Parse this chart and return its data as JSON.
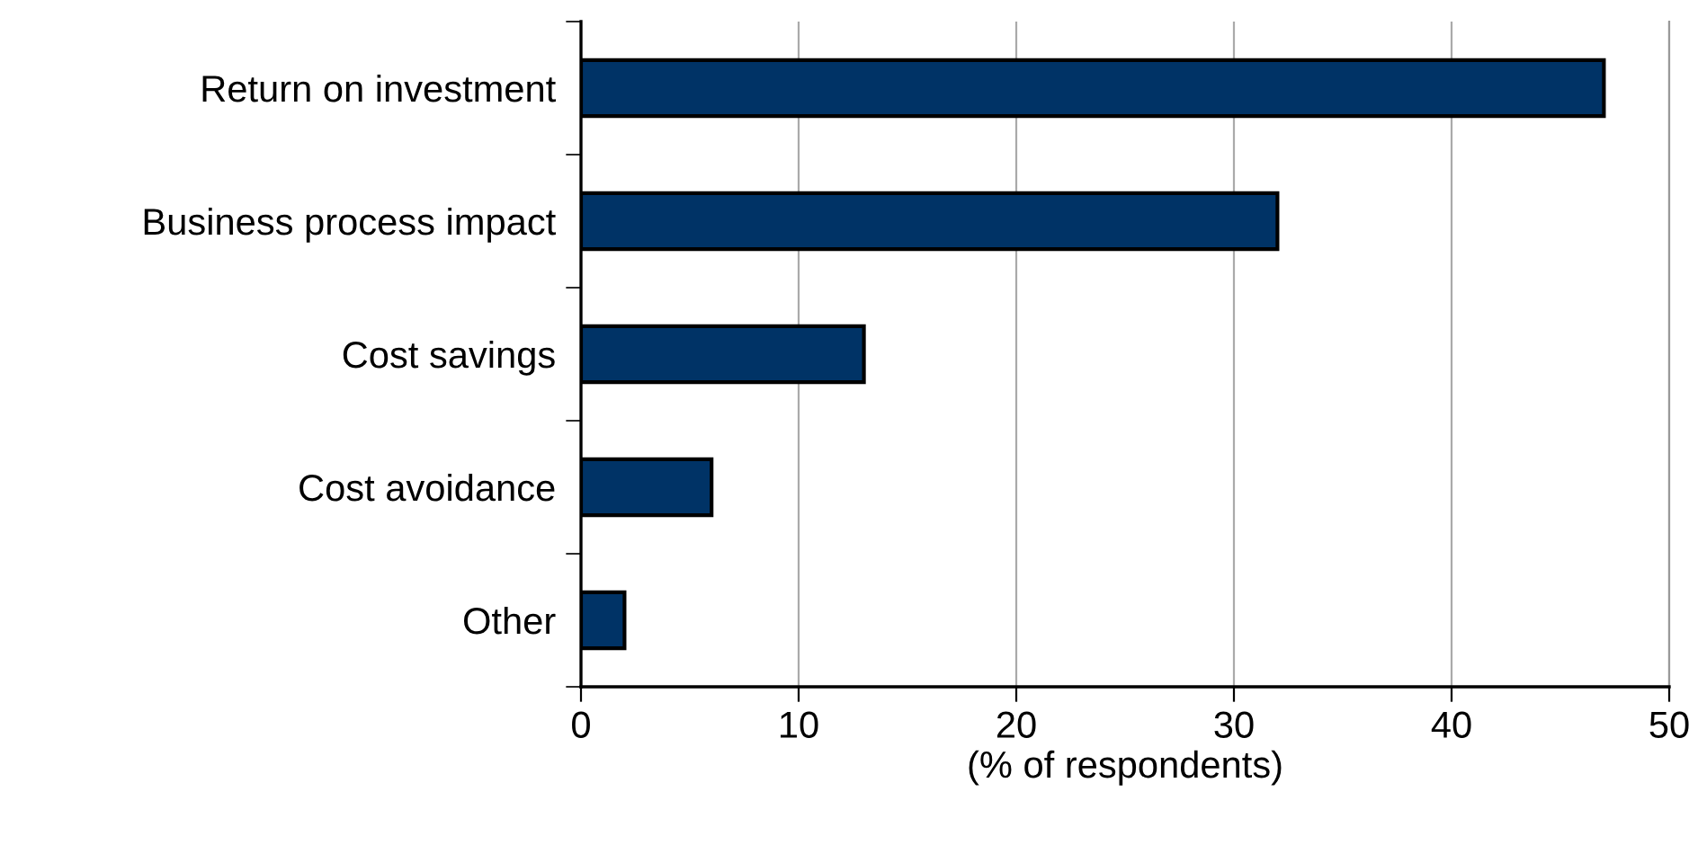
{
  "chart_data": {
    "type": "bar",
    "orientation": "horizontal",
    "xlabel": "(% of respondents)",
    "categories": [
      "Return on investment",
      "Business process impact",
      "Cost savings",
      "Cost avoidance",
      "Other"
    ],
    "values": [
      47,
      32,
      13,
      6,
      2
    ],
    "color": "#003366",
    "xlim": [
      0,
      50
    ],
    "xticks": [
      0,
      10,
      20,
      30,
      40,
      50
    ],
    "grid": "x"
  }
}
